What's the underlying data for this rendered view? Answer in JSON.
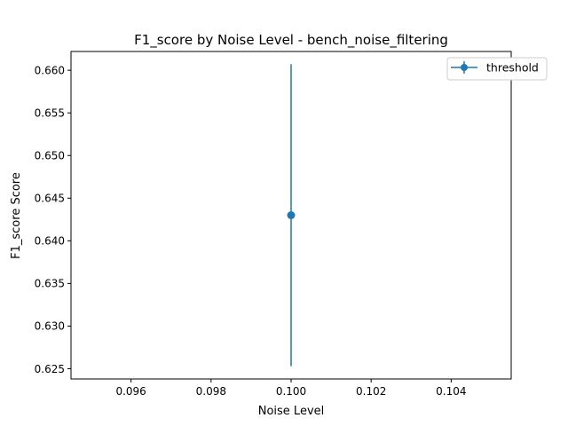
{
  "chart_data": {
    "type": "line",
    "title": "F1_score by Noise Level - bench_noise_filtering",
    "xlabel": "Noise Level",
    "ylabel": "F1_score Score",
    "xlim": [
      0.0945,
      0.1055
    ],
    "ylim": [
      0.6238,
      0.6622
    ],
    "x_ticks": [
      0.096,
      0.098,
      0.1,
      0.102,
      0.104
    ],
    "x_tick_labels": [
      "0.096",
      "0.098",
      "0.100",
      "0.102",
      "0.104"
    ],
    "y_ticks": [
      0.625,
      0.63,
      0.635,
      0.64,
      0.645,
      0.65,
      0.655,
      0.66
    ],
    "y_tick_labels": [
      "0.625",
      "0.630",
      "0.635",
      "0.640",
      "0.645",
      "0.650",
      "0.655",
      "0.660"
    ],
    "grid": false,
    "legend_position": "upper right",
    "series": [
      {
        "name": "threshold",
        "color": "#1f77b4",
        "marker": "circle",
        "points": [
          {
            "x": 0.1,
            "y": 0.643,
            "y_err_low": 0.6253,
            "y_err_high": 0.6607
          }
        ]
      }
    ]
  }
}
